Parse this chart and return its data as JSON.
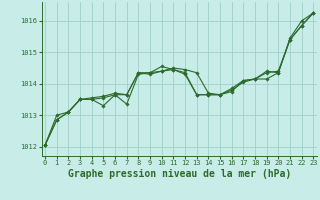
{
  "background_color": "#c8ece8",
  "grid_color": "#a0d0c8",
  "line_color": "#2d6b2d",
  "title": "Graphe pression niveau de la mer (hPa)",
  "xlim": [
    -0.3,
    23.3
  ],
  "ylim": [
    1011.7,
    1016.6
  ],
  "yticks": [
    1012,
    1013,
    1014,
    1015,
    1016
  ],
  "xticks": [
    0,
    1,
    2,
    3,
    4,
    5,
    6,
    7,
    8,
    9,
    10,
    11,
    12,
    13,
    14,
    15,
    16,
    17,
    18,
    19,
    20,
    21,
    22,
    23
  ],
  "line1_x": [
    0,
    1,
    2,
    3,
    4,
    5,
    6,
    7,
    8,
    9,
    10,
    11,
    12,
    13,
    14,
    15,
    16,
    17,
    18,
    19,
    20,
    21,
    22,
    23
  ],
  "line1_y": [
    1012.05,
    1012.85,
    1013.1,
    1013.5,
    1013.5,
    1013.55,
    1013.65,
    1013.65,
    1014.35,
    1014.3,
    1014.4,
    1014.5,
    1014.45,
    1014.35,
    1013.7,
    1013.65,
    1013.8,
    1014.05,
    1014.15,
    1014.4,
    1014.35,
    1015.45,
    1016.0,
    1016.25
  ],
  "line2_x": [
    0,
    1,
    2,
    3,
    4,
    5,
    6,
    7,
    8,
    9,
    10,
    11,
    12,
    13,
    14,
    15,
    16,
    17,
    18,
    19,
    20,
    21,
    22,
    23
  ],
  "line2_y": [
    1012.05,
    1012.85,
    1013.1,
    1013.5,
    1013.5,
    1013.3,
    1013.65,
    1013.35,
    1014.3,
    1014.35,
    1014.55,
    1014.45,
    1014.35,
    1013.65,
    1013.65,
    1013.65,
    1013.75,
    1014.1,
    1014.15,
    1014.15,
    1014.35,
    1015.4,
    1015.85,
    1016.25
  ],
  "line3_x": [
    0,
    1,
    2,
    3,
    4,
    5,
    6,
    7,
    8,
    9,
    10,
    11,
    12,
    13,
    14,
    15,
    16,
    17,
    18,
    19,
    20,
    21,
    22,
    23
  ],
  "line3_y": [
    1012.05,
    1013.0,
    1013.1,
    1013.5,
    1013.55,
    1013.6,
    1013.7,
    1013.65,
    1014.35,
    1014.35,
    1014.4,
    1014.45,
    1014.3,
    1013.65,
    1013.65,
    1013.65,
    1013.85,
    1014.1,
    1014.15,
    1014.35,
    1014.4,
    1015.4,
    1015.85,
    1016.25
  ],
  "marker_style": "D",
  "marker_size": 1.8,
  "linewidth": 0.8,
  "title_fontsize": 7.0,
  "tick_fontsize": 5.0,
  "ylabel_fontsize": 5.0
}
